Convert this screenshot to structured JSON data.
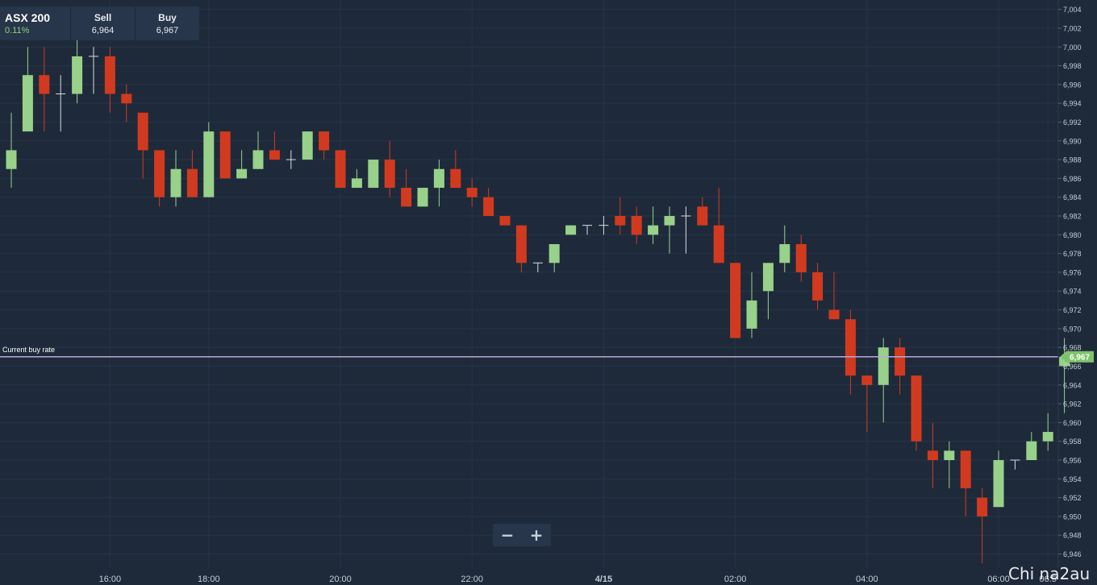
{
  "header": {
    "instrument": "ASX 200",
    "change": "0.11%",
    "sell_label": "Sell",
    "sell_value": "6,964",
    "buy_label": "Buy",
    "buy_value": "6,967"
  },
  "zoom": {
    "minus": "−",
    "plus": "+"
  },
  "watermark": "Chi na2au",
  "colors": {
    "background": "#1e2a3a",
    "up": "#98d18a",
    "down": "#d23a1f",
    "buy_line": "#b9a9d8",
    "price_tag": "#7fc46a",
    "axis_text": "#c6ccd4"
  },
  "chart_data": {
    "type": "candlestick",
    "instrument": "ASX 200",
    "current_buy_rate": {
      "label": "Current buy rate",
      "value": 6967,
      "tag": "6,967"
    },
    "ylim": [
      6944.5,
      7005
    ],
    "y_ticks": [
      7004,
      7002,
      7000,
      6998,
      6996,
      6994,
      6992,
      6990,
      6988,
      6986,
      6984,
      6982,
      6980,
      6978,
      6976,
      6974,
      6972,
      6970,
      6968,
      6966,
      6964,
      6962,
      6960,
      6958,
      6956,
      6954,
      6952,
      6950,
      6948,
      6946
    ],
    "y_tick_labels": [
      "7,004",
      "7,002",
      "7,000",
      "6,998",
      "6,996",
      "6,994",
      "6,992",
      "6,990",
      "6,988",
      "6,986",
      "6,984",
      "6,982",
      "6,980",
      "6,978",
      "6,976",
      "6,974",
      "6,972",
      "6,970",
      "6,968",
      "6,966",
      "6,964",
      "6,962",
      "6,960",
      "6,958",
      "6,956",
      "6,954",
      "6,952",
      "6,950",
      "6,948",
      "6,946"
    ],
    "x_ticks": [
      {
        "label": "16:00",
        "index": 6,
        "bold": false
      },
      {
        "label": "18:00",
        "index": 12,
        "bold": false
      },
      {
        "label": "20:00",
        "index": 20,
        "bold": false
      },
      {
        "label": "22:00",
        "index": 28,
        "bold": false
      },
      {
        "label": "4/15",
        "index": 36,
        "bold": true
      },
      {
        "label": "02:00",
        "index": 44,
        "bold": false
      },
      {
        "label": "04:00",
        "index": 52,
        "bold": false
      },
      {
        "label": "06:00",
        "index": 60,
        "bold": false
      },
      {
        "label": "06:5",
        "index": 63,
        "bold": false
      }
    ],
    "candles": [
      {
        "o": 6987,
        "h": 6993,
        "l": 6985,
        "c": 6989
      },
      {
        "o": 6991,
        "h": 7000,
        "l": 6991,
        "c": 6997
      },
      {
        "o": 6997,
        "h": 7000,
        "l": 6991,
        "c": 6995
      },
      {
        "o": 6995,
        "h": 6997,
        "l": 6991,
        "c": 6995
      },
      {
        "o": 6995,
        "h": 7001,
        "l": 6994,
        "c": 6999
      },
      {
        "o": 6999,
        "h": 7000,
        "l": 6995,
        "c": 6999
      },
      {
        "o": 6999,
        "h": 7000,
        "l": 6993,
        "c": 6995
      },
      {
        "o": 6995,
        "h": 6996,
        "l": 6992,
        "c": 6994
      },
      {
        "o": 6993,
        "h": 6993,
        "l": 6986,
        "c": 6989
      },
      {
        "o": 6989,
        "h": 6989,
        "l": 6983,
        "c": 6984
      },
      {
        "o": 6984,
        "h": 6989,
        "l": 6983,
        "c": 6987
      },
      {
        "o": 6987,
        "h": 6989,
        "l": 6984,
        "c": 6984
      },
      {
        "o": 6984,
        "h": 6992,
        "l": 6984,
        "c": 6991
      },
      {
        "o": 6991,
        "h": 6991,
        "l": 6986,
        "c": 6986
      },
      {
        "o": 6986,
        "h": 6989,
        "l": 6986,
        "c": 6987
      },
      {
        "o": 6987,
        "h": 6991,
        "l": 6987,
        "c": 6989
      },
      {
        "o": 6989,
        "h": 6991,
        "l": 6988,
        "c": 6988
      },
      {
        "o": 6988,
        "h": 6989,
        "l": 6987,
        "c": 6988
      },
      {
        "o": 6988,
        "h": 6991,
        "l": 6988,
        "c": 6991
      },
      {
        "o": 6991,
        "h": 6991,
        "l": 6988,
        "c": 6989
      },
      {
        "o": 6989,
        "h": 6989,
        "l": 6985,
        "c": 6985
      },
      {
        "o": 6985,
        "h": 6987,
        "l": 6985,
        "c": 6986
      },
      {
        "o": 6985,
        "h": 6988,
        "l": 6985,
        "c": 6988
      },
      {
        "o": 6988,
        "h": 6990,
        "l": 6984,
        "c": 6985
      },
      {
        "o": 6985,
        "h": 6987,
        "l": 6983,
        "c": 6983
      },
      {
        "o": 6983,
        "h": 6985,
        "l": 6983,
        "c": 6985
      },
      {
        "o": 6985,
        "h": 6988,
        "l": 6983,
        "c": 6987
      },
      {
        "o": 6987,
        "h": 6989,
        "l": 6985,
        "c": 6985
      },
      {
        "o": 6985,
        "h": 6986,
        "l": 6983,
        "c": 6984
      },
      {
        "o": 6984,
        "h": 6985,
        "l": 6982,
        "c": 6982
      },
      {
        "o": 6982,
        "h": 6982,
        "l": 6981,
        "c": 6981
      },
      {
        "o": 6981,
        "h": 6981,
        "l": 6976,
        "c": 6977
      },
      {
        "o": 6977,
        "h": 6977,
        "l": 6976,
        "c": 6977
      },
      {
        "o": 6977,
        "h": 6979,
        "l": 6976,
        "c": 6979
      },
      {
        "o": 6980,
        "h": 6981,
        "l": 6980,
        "c": 6981
      },
      {
        "o": 6981,
        "h": 6981,
        "l": 6980,
        "c": 6981
      },
      {
        "o": 6981,
        "h": 6982,
        "l": 6980,
        "c": 6981
      },
      {
        "o": 6982,
        "h": 6984,
        "l": 6980,
        "c": 6981
      },
      {
        "o": 6982,
        "h": 6983,
        "l": 6979,
        "c": 6980
      },
      {
        "o": 6980,
        "h": 6983,
        "l": 6979,
        "c": 6981
      },
      {
        "o": 6981,
        "h": 6983,
        "l": 6978,
        "c": 6982
      },
      {
        "o": 6982,
        "h": 6983,
        "l": 6978,
        "c": 6982
      },
      {
        "o": 6983,
        "h": 6984,
        "l": 6981,
        "c": 6981
      },
      {
        "o": 6981,
        "h": 6985,
        "l": 6977,
        "c": 6977
      },
      {
        "o": 6977,
        "h": 6977,
        "l": 6969,
        "c": 6969
      },
      {
        "o": 6970,
        "h": 6976,
        "l": 6969,
        "c": 6973
      },
      {
        "o": 6974,
        "h": 6977,
        "l": 6971,
        "c": 6977
      },
      {
        "o": 6977,
        "h": 6981,
        "l": 6976,
        "c": 6979
      },
      {
        "o": 6979,
        "h": 6980,
        "l": 6975,
        "c": 6976
      },
      {
        "o": 6976,
        "h": 6977,
        "l": 6972,
        "c": 6973
      },
      {
        "o": 6972,
        "h": 6976,
        "l": 6971,
        "c": 6971
      },
      {
        "o": 6971,
        "h": 6972,
        "l": 6963,
        "c": 6965
      },
      {
        "o": 6965,
        "h": 6965,
        "l": 6959,
        "c": 6964
      },
      {
        "o": 6964,
        "h": 6969,
        "l": 6960,
        "c": 6968
      },
      {
        "o": 6968,
        "h": 6969,
        "l": 6963,
        "c": 6965
      },
      {
        "o": 6965,
        "h": 6965,
        "l": 6957,
        "c": 6958
      },
      {
        "o": 6957,
        "h": 6960,
        "l": 6953,
        "c": 6956
      },
      {
        "o": 6956,
        "h": 6958,
        "l": 6953,
        "c": 6957
      },
      {
        "o": 6957,
        "h": 6957,
        "l": 6950,
        "c": 6953
      },
      {
        "o": 6952,
        "h": 6953,
        "l": 6945,
        "c": 6950
      },
      {
        "o": 6951,
        "h": 6957,
        "l": 6951,
        "c": 6956
      },
      {
        "o": 6956,
        "h": 6956,
        "l": 6955,
        "c": 6956
      },
      {
        "o": 6956,
        "h": 6959,
        "l": 6956,
        "c": 6958
      },
      {
        "o": 6958,
        "h": 6961,
        "l": 6957,
        "c": 6959
      },
      {
        "o": 6966,
        "h": 6969,
        "l": 6961,
        "c": 6967
      }
    ]
  }
}
